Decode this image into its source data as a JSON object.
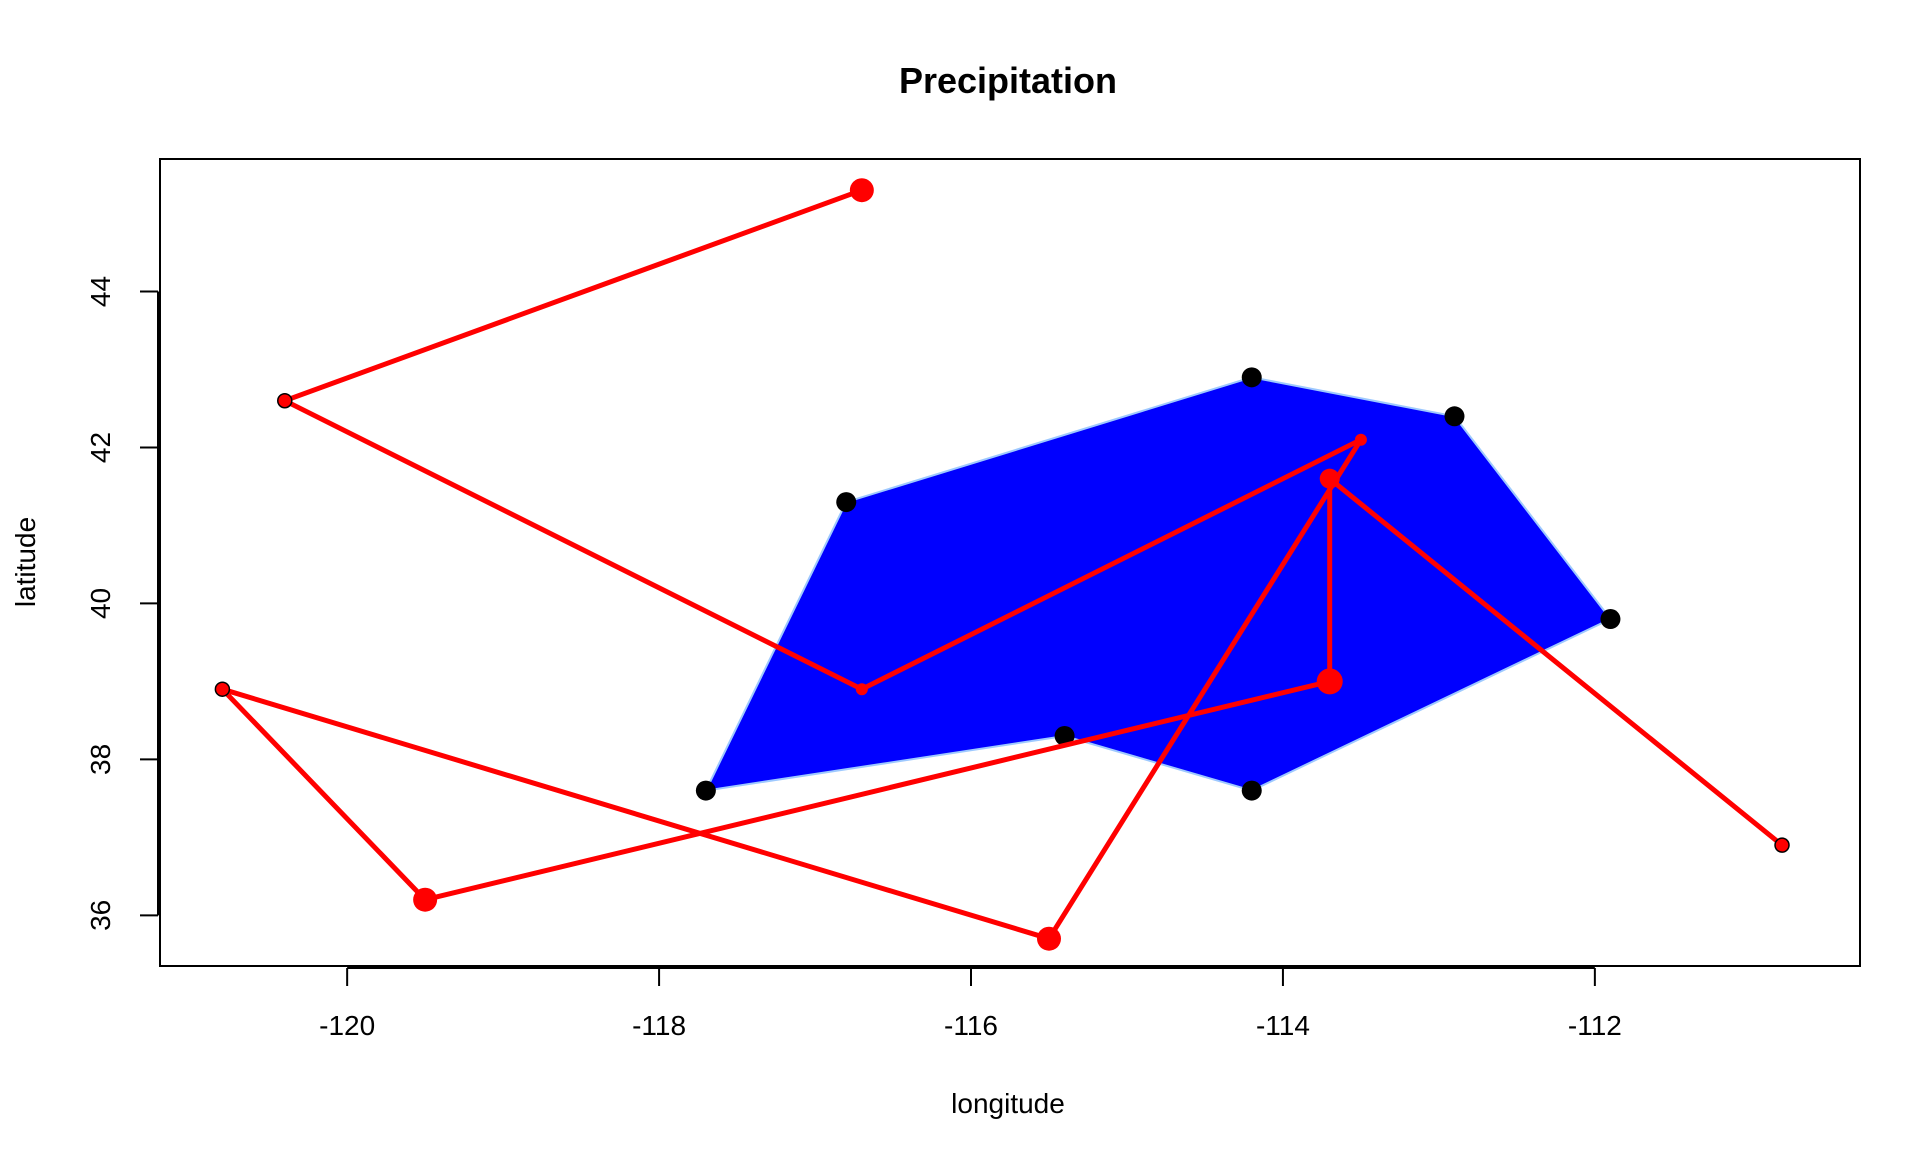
{
  "chart_data": {
    "type": "line",
    "title": "Precipitation",
    "xlabel": "longitude",
    "ylabel": "latitude",
    "xlim": [
      -121.2,
      -110.3
    ],
    "ylim": [
      35.35,
      45.7
    ],
    "xticks": [
      -120,
      -118,
      -116,
      -114,
      -112
    ],
    "yticks": [
      36,
      38,
      40,
      42,
      44
    ],
    "grid": false,
    "legend": "none",
    "polygon": {
      "fill": "#0000ff",
      "edge": "#9ec9ff",
      "vertices": [
        {
          "x": -117.7,
          "y": 37.6
        },
        {
          "x": -116.8,
          "y": 41.3
        },
        {
          "x": -114.2,
          "y": 42.9
        },
        {
          "x": -112.9,
          "y": 42.4
        },
        {
          "x": -111.9,
          "y": 39.8
        },
        {
          "x": -114.2,
          "y": 37.6
        },
        {
          "x": -115.4,
          "y": 38.3
        }
      ]
    },
    "stations": {
      "color": "#000000",
      "points": [
        {
          "x": -117.7,
          "y": 37.6
        },
        {
          "x": -116.8,
          "y": 41.3
        },
        {
          "x": -114.2,
          "y": 42.9
        },
        {
          "x": -112.9,
          "y": 42.4
        },
        {
          "x": -111.9,
          "y": 39.8
        },
        {
          "x": -114.2,
          "y": 37.6
        },
        {
          "x": -115.4,
          "y": 38.3
        }
      ]
    },
    "series": [
      {
        "color": "#ff0000",
        "points": [
          {
            "x": -116.7,
            "y": 45.3,
            "size": 3
          },
          {
            "x": -120.4,
            "y": 42.6,
            "size": 1
          },
          {
            "x": -116.7,
            "y": 38.9,
            "size": 0
          },
          {
            "x": -113.5,
            "y": 42.1,
            "size": 0
          },
          {
            "x": -115.5,
            "y": 35.7,
            "size": 3
          },
          {
            "x": -120.8,
            "y": 38.9,
            "size": 1
          },
          {
            "x": -119.5,
            "y": 36.2,
            "size": 3
          },
          {
            "x": -113.7,
            "y": 39.0,
            "size": 4
          },
          {
            "x": -113.7,
            "y": 41.6,
            "size": 2
          },
          {
            "x": -110.8,
            "y": 36.9,
            "size": 1
          }
        ]
      }
    ]
  }
}
